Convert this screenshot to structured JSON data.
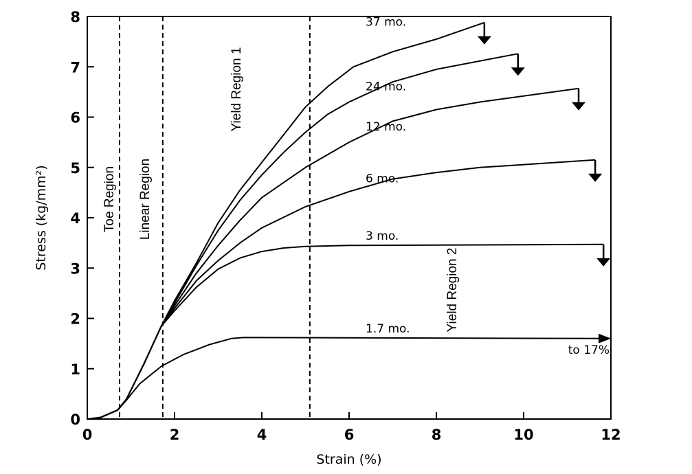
{
  "chart_data": {
    "type": "line",
    "title": "",
    "xlabel": "Strain (%)",
    "ylabel": "Stress (kg/mm²)",
    "xlim": [
      0,
      12
    ],
    "ylim": [
      0,
      8
    ],
    "xticks": [
      "0",
      "2",
      "4",
      "6",
      "8",
      "10",
      "12"
    ],
    "yticks": [
      "0",
      "1",
      "2",
      "3",
      "4",
      "5",
      "6",
      "7",
      "8"
    ],
    "grid": false,
    "colors": {
      "line": "#000000"
    },
    "region_boundaries": [
      0.74,
      1.73,
      5.1
    ],
    "region_labels": [
      "Toe Region",
      "Linear Region",
      "Yield Region 1",
      "Yield Region 2"
    ],
    "series": [
      {
        "name": "37 mo.",
        "end": "failure",
        "points": [
          [
            0,
            0
          ],
          [
            0.3,
            0.03
          ],
          [
            0.7,
            0.18
          ],
          [
            0.9,
            0.4
          ],
          [
            1.3,
            1.1
          ],
          [
            1.7,
            1.85
          ],
          [
            2,
            2.35
          ],
          [
            2.5,
            3.1
          ],
          [
            3,
            3.9
          ],
          [
            3.5,
            4.55
          ],
          [
            4,
            5.1
          ],
          [
            4.5,
            5.65
          ],
          [
            5,
            6.2
          ],
          [
            5.5,
            6.6
          ],
          [
            6.1,
            7.0
          ],
          [
            7,
            7.3
          ],
          [
            8,
            7.55
          ],
          [
            9.1,
            7.88
          ]
        ]
      },
      {
        "name": "24 mo.",
        "end": "failure",
        "points": [
          [
            0,
            0
          ],
          [
            0.3,
            0.03
          ],
          [
            0.7,
            0.18
          ],
          [
            0.9,
            0.4
          ],
          [
            1.3,
            1.1
          ],
          [
            1.7,
            1.85
          ],
          [
            2,
            2.3
          ],
          [
            2.5,
            3.05
          ],
          [
            3,
            3.75
          ],
          [
            3.5,
            4.35
          ],
          [
            4,
            4.85
          ],
          [
            4.5,
            5.3
          ],
          [
            5,
            5.7
          ],
          [
            5.5,
            6.05
          ],
          [
            6,
            6.3
          ],
          [
            7,
            6.7
          ],
          [
            8,
            6.95
          ],
          [
            9.87,
            7.26
          ]
        ]
      },
      {
        "name": "12 mo.",
        "end": "failure",
        "points": [
          [
            0,
            0
          ],
          [
            0.3,
            0.03
          ],
          [
            0.7,
            0.18
          ],
          [
            0.9,
            0.4
          ],
          [
            1.3,
            1.1
          ],
          [
            1.7,
            1.85
          ],
          [
            2,
            2.25
          ],
          [
            2.5,
            2.9
          ],
          [
            3,
            3.45
          ],
          [
            3.5,
            3.95
          ],
          [
            4,
            4.4
          ],
          [
            4.5,
            4.7
          ],
          [
            5,
            5.0
          ],
          [
            5.5,
            5.25
          ],
          [
            6,
            5.5
          ],
          [
            7,
            5.92
          ],
          [
            8,
            6.15
          ],
          [
            9,
            6.3
          ],
          [
            11.26,
            6.57
          ]
        ]
      },
      {
        "name": "6 mo.",
        "end": "failure",
        "points": [
          [
            0,
            0
          ],
          [
            0.3,
            0.03
          ],
          [
            0.7,
            0.18
          ],
          [
            0.9,
            0.4
          ],
          [
            1.3,
            1.1
          ],
          [
            1.7,
            1.85
          ],
          [
            2,
            2.2
          ],
          [
            2.5,
            2.75
          ],
          [
            3,
            3.15
          ],
          [
            3.5,
            3.5
          ],
          [
            4,
            3.8
          ],
          [
            5,
            4.22
          ],
          [
            6,
            4.52
          ],
          [
            7,
            4.77
          ],
          [
            8,
            4.9
          ],
          [
            9,
            5.0
          ],
          [
            11.64,
            5.15
          ]
        ]
      },
      {
        "name": "3 mo.",
        "end": "failure",
        "points": [
          [
            0,
            0
          ],
          [
            0.3,
            0.03
          ],
          [
            0.7,
            0.18
          ],
          [
            0.9,
            0.4
          ],
          [
            1.3,
            1.1
          ],
          [
            1.7,
            1.85
          ],
          [
            2,
            2.15
          ],
          [
            2.5,
            2.62
          ],
          [
            3,
            2.98
          ],
          [
            3.5,
            3.2
          ],
          [
            4,
            3.33
          ],
          [
            4.5,
            3.4
          ],
          [
            5,
            3.43
          ],
          [
            6,
            3.45
          ],
          [
            11.83,
            3.47
          ]
        ]
      },
      {
        "name": "1.7 mo.",
        "end": "to 17%",
        "points": [
          [
            0,
            0
          ],
          [
            0.3,
            0.03
          ],
          [
            0.7,
            0.18
          ],
          [
            0.9,
            0.38
          ],
          [
            1.2,
            0.7
          ],
          [
            1.7,
            1.05
          ],
          [
            2.2,
            1.28
          ],
          [
            2.8,
            1.48
          ],
          [
            3.3,
            1.6
          ],
          [
            3.6,
            1.62
          ],
          [
            12,
            1.6
          ]
        ]
      }
    ],
    "annotations": [
      "to 17%"
    ]
  }
}
